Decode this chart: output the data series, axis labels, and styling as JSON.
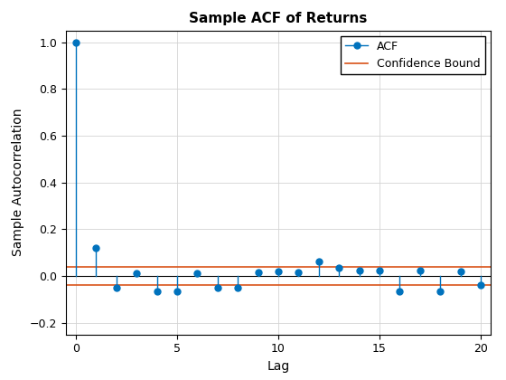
{
  "title": "Sample ACF of Returns",
  "xlabel": "Lag",
  "ylabel": "Sample Autocorrelation",
  "lags": [
    0,
    1,
    2,
    3,
    4,
    5,
    6,
    7,
    8,
    9,
    10,
    11,
    12,
    13,
    14,
    15,
    16,
    17,
    18,
    19,
    20
  ],
  "acf_values": [
    1.0,
    0.12,
    -0.05,
    0.01,
    -0.065,
    -0.065,
    0.01,
    -0.05,
    -0.05,
    0.015,
    0.02,
    0.015,
    0.063,
    0.035,
    0.025,
    0.025,
    -0.065,
    0.025,
    -0.065,
    0.02,
    -0.04
  ],
  "conf_bound": 0.038,
  "ylim": [
    -0.25,
    1.05
  ],
  "xlim": [
    -0.5,
    20.5
  ],
  "stem_color": "#0072BD",
  "conf_color": "#D95319",
  "background_color": "#FFFFFF",
  "grid_color": "#D3D3D3",
  "title_fontsize": 11,
  "label_fontsize": 10,
  "tick_fontsize": 9,
  "legend_labels": [
    "ACF",
    "Confidence Bound"
  ]
}
